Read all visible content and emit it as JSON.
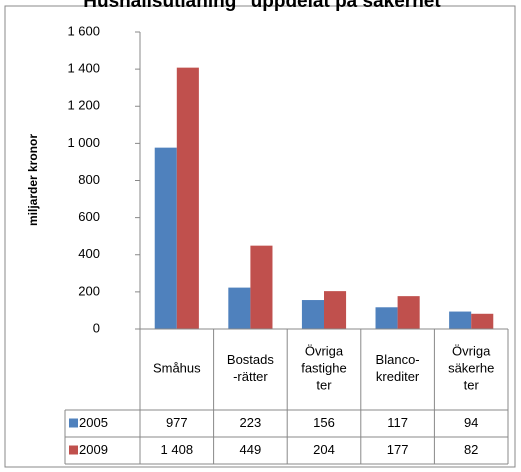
{
  "chart_data": {
    "type": "bar",
    "title": "Hushållsutlåning\" uppdelat på säkerhet",
    "ylabel": "miljarder kronor",
    "categories": [
      "Småhus",
      "Bostads -rätter",
      "Övriga fastighe ter",
      "Blanco- krediter",
      "Övriga säkerhe ter"
    ],
    "series": [
      {
        "name": "2005",
        "color": "#4f81bd",
        "values": [
          977,
          223,
          156,
          117,
          94
        ],
        "value_labels": [
          "977",
          "223",
          "156",
          "117",
          "94"
        ]
      },
      {
        "name": "2009",
        "color": "#c0504d",
        "values": [
          1408,
          449,
          204,
          177,
          82
        ],
        "value_labels": [
          "1 408",
          "449",
          "204",
          "177",
          "82"
        ]
      }
    ],
    "ylim": [
      0,
      1600
    ],
    "yticks": [
      0,
      200,
      400,
      600,
      800,
      {
        "value": 1000,
        "label": "1 000"
      },
      {
        "value": 1200,
        "label": "1 200"
      },
      {
        "value": 1400,
        "label": "1 400"
      },
      {
        "value": 1600,
        "label": "1 600"
      }
    ],
    "grid": false
  }
}
